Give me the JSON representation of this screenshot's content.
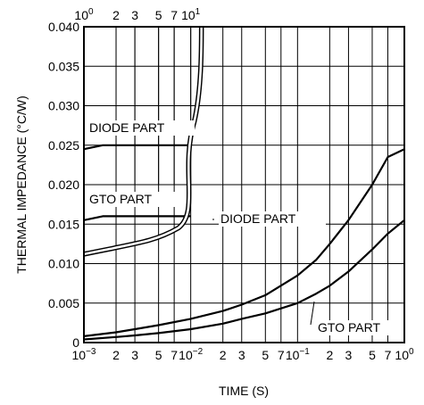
{
  "chart_data": {
    "type": "line",
    "xlabel": "TIME  (S)",
    "ylabel": "THERMAL IMPEDANCE  (°C/W)",
    "x_scale": "log",
    "xlim": [
      0.001,
      1
    ],
    "ylim": [
      0,
      0.04
    ],
    "y_ticks": [
      "0",
      "0.005",
      "0.010",
      "0.015",
      "0.020",
      "0.025",
      "0.030",
      "0.035",
      "0.040"
    ],
    "x_ticks_bottom": [
      {
        "label": "10",
        "sup": "−3",
        "value": 0.001
      },
      {
        "label": "2",
        "value": 0.002
      },
      {
        "label": "3",
        "value": 0.003
      },
      {
        "label": "5",
        "value": 0.005
      },
      {
        "label": "7",
        "value": 0.007
      },
      {
        "label": "10",
        "sup": "−2",
        "value": 0.01
      },
      {
        "label": "2",
        "value": 0.02
      },
      {
        "label": "3",
        "value": 0.03
      },
      {
        "label": "5",
        "value": 0.05
      },
      {
        "label": "7",
        "value": 0.07
      },
      {
        "label": "10",
        "sup": "−1",
        "value": 0.1
      },
      {
        "label": "2",
        "value": 0.2
      },
      {
        "label": "3",
        "value": 0.3
      },
      {
        "label": "5",
        "value": 0.5
      },
      {
        "label": "7",
        "value": 0.7
      },
      {
        "label": "10",
        "sup": "0",
        "value": 1
      }
    ],
    "x_ticks_top": [
      {
        "label": "10",
        "sup": "0",
        "value": 1
      },
      {
        "label": "2",
        "value": 2
      },
      {
        "label": "3",
        "value": 3
      },
      {
        "label": "5",
        "value": 5
      },
      {
        "label": "7",
        "value": 7
      },
      {
        "label": "10",
        "sup": "1",
        "value": 10
      }
    ],
    "x_top_range": [
      1,
      10
    ],
    "top_axis_extent": 0.01,
    "grid": true,
    "series": [
      {
        "name": "DIODE PART",
        "axis": "bottom",
        "x": [
          0.001,
          0.002,
          0.003,
          0.005,
          0.01,
          0.02,
          0.03,
          0.05,
          0.1,
          0.15,
          0.2,
          0.3,
          0.5,
          0.7,
          1.0
        ],
        "y": [
          0.0008,
          0.0013,
          0.0017,
          0.0022,
          0.003,
          0.004,
          0.0048,
          0.006,
          0.0085,
          0.0105,
          0.0125,
          0.0155,
          0.02,
          0.0235,
          0.0245
        ]
      },
      {
        "name": "GTO PART",
        "axis": "bottom",
        "x": [
          0.001,
          0.002,
          0.003,
          0.005,
          0.01,
          0.02,
          0.03,
          0.05,
          0.1,
          0.15,
          0.2,
          0.3,
          0.5,
          0.7,
          1.0
        ],
        "y": [
          0.0004,
          0.0007,
          0.0009,
          0.0012,
          0.0017,
          0.0024,
          0.003,
          0.0037,
          0.005,
          0.0062,
          0.0072,
          0.009,
          0.0118,
          0.0138,
          0.0155
        ]
      },
      {
        "name": "DIODE PART",
        "axis": "top",
        "x": [
          1,
          1.5,
          2,
          3,
          5,
          7,
          10
        ],
        "y": [
          0.0245,
          0.025,
          0.025,
          0.025,
          0.025,
          0.025,
          0.025
        ]
      },
      {
        "name": "GTO PART",
        "axis": "top",
        "x": [
          1,
          1.5,
          2,
          3,
          5,
          7,
          10
        ],
        "y": [
          0.0155,
          0.016,
          0.016,
          0.016,
          0.016,
          0.016,
          0.016
        ]
      }
    ],
    "annotations": [
      "DIODE PART",
      "GTO PART",
      "DIODE PART",
      "GTO PART"
    ]
  }
}
